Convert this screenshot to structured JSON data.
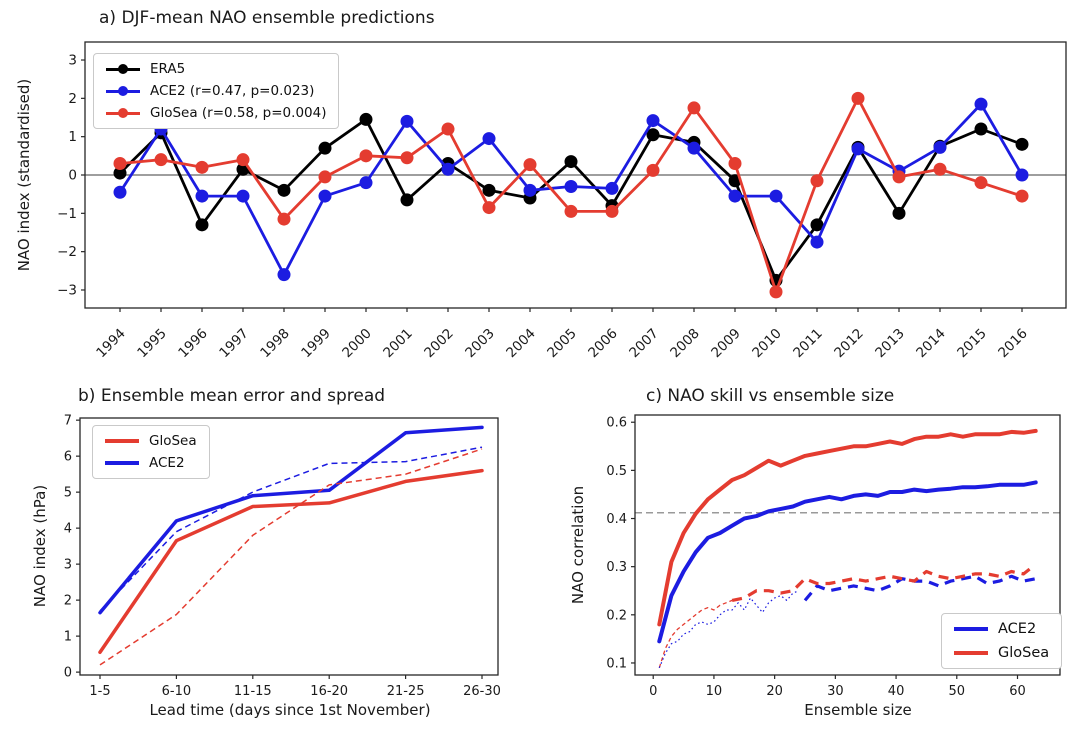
{
  "figure": {
    "background": "#ffffff"
  },
  "colors": {
    "era5": "#000000",
    "ace2": "#1c1ce1",
    "glosea": "#e43c30",
    "zero_line": "#7f7f7f",
    "ref_line": "#9a9a9a",
    "spine": "#262626"
  },
  "panels": {
    "a": {
      "title": "a) DJF-mean NAO ensemble predictions",
      "ylabel": "NAO index (standardised)",
      "legend": [
        {
          "label": "ERA5",
          "color": "#000000",
          "marker": true
        },
        {
          "label": "ACE2 (r=0.47, p=0.023)",
          "color": "#1c1ce1",
          "marker": true
        },
        {
          "label": "GloSea (r=0.58, p=0.004)",
          "color": "#e43c30",
          "marker": true
        }
      ]
    },
    "b": {
      "title": "b) Ensemble mean error and spread",
      "xlabel": "Lead time (days since 1st November)",
      "ylabel": "NAO index (hPa)",
      "legend": [
        {
          "label": "GloSea",
          "color": "#e43c30"
        },
        {
          "label": "ACE2",
          "color": "#1c1ce1"
        }
      ]
    },
    "c": {
      "title": "c) NAO skill vs ensemble size",
      "xlabel": "Ensemble size",
      "ylabel": "NAO correlation",
      "legend": [
        {
          "label": "ACE2",
          "color": "#1c1ce1"
        },
        {
          "label": "GloSea",
          "color": "#e43c30"
        }
      ]
    }
  },
  "chart_data": [
    {
      "id": "a",
      "type": "line",
      "title": "a) DJF-mean NAO ensemble predictions",
      "ylabel": "NAO index (standardised)",
      "markers": true,
      "zero_line": true,
      "ylim": [
        -3.5,
        3.5
      ],
      "xticklabels": [
        "1994",
        "1995",
        "1996",
        "1997",
        "1998",
        "1999",
        "2000",
        "2001",
        "2002",
        "2003",
        "2004",
        "2005",
        "2006",
        "2007",
        "2008",
        "2009",
        "2010",
        "2011",
        "2012",
        "2013",
        "2014",
        "2015",
        "2016"
      ],
      "yticks": [
        3,
        2,
        1,
        0,
        -1,
        -2,
        -3
      ],
      "yticklabels": [
        "3",
        "2",
        "1",
        "0",
        "−1",
        "−2",
        "−3"
      ],
      "series": [
        {
          "id": "era5",
          "name": "ERA5",
          "color": "#000000",
          "width": 2.8,
          "dash": "solid",
          "values": [
            0.05,
            1.1,
            -1.3,
            0.15,
            -0.4,
            0.7,
            1.45,
            -0.65,
            0.3,
            -0.4,
            -0.6,
            0.35,
            -0.8,
            1.05,
            0.85,
            -0.15,
            -2.75,
            -1.3,
            0.72,
            -1.0,
            0.75,
            1.2,
            0.8
          ]
        },
        {
          "id": "ace2",
          "name": "ACE2 (r=0.47, p=0.023)",
          "color": "#1c1ce1",
          "width": 2.8,
          "dash": "solid",
          "values": [
            -0.45,
            1.2,
            -0.55,
            -0.55,
            -2.6,
            -0.55,
            -0.2,
            1.4,
            0.15,
            0.95,
            -0.4,
            -0.3,
            -0.35,
            1.42,
            0.7,
            -0.55,
            -0.55,
            -1.75,
            0.68,
            0.1,
            0.72,
            1.85,
            0.0
          ]
        },
        {
          "id": "glosea",
          "name": "GloSea (r=0.58, p=0.004)",
          "color": "#e43c30",
          "width": 2.8,
          "dash": "solid",
          "values": [
            0.3,
            0.4,
            0.2,
            0.4,
            -1.15,
            -0.05,
            0.5,
            0.45,
            1.2,
            -0.85,
            0.27,
            -0.95,
            -0.95,
            0.12,
            1.75,
            0.3,
            -3.05,
            -0.15,
            2.0,
            -0.05,
            0.15,
            -0.2,
            -0.55
          ]
        }
      ]
    },
    {
      "id": "b",
      "type": "line",
      "title": "b) Ensemble mean error and spread",
      "xlabel": "Lead time (days since 1st November)",
      "ylabel": "NAO index (hPa)",
      "ylim": [
        0,
        7
      ],
      "xticklabels": [
        "1-5",
        "6-10",
        "11-15",
        "16-20",
        "21-25",
        "26-30"
      ],
      "yticks": [
        0,
        1,
        2,
        3,
        4,
        5,
        6,
        7
      ],
      "yticklabels": [
        "0",
        "1",
        "2",
        "3",
        "4",
        "5",
        "6",
        "7"
      ],
      "series": [
        {
          "id": "glosea-error",
          "name": "GloSea",
          "color": "#e43c30",
          "width": 3.5,
          "dash": "solid",
          "values": [
            0.55,
            3.65,
            4.6,
            4.7,
            5.3,
            5.6
          ]
        },
        {
          "id": "ace2-error",
          "name": "ACE2",
          "color": "#1c1ce1",
          "width": 3.5,
          "dash": "solid",
          "values": [
            1.65,
            4.2,
            4.9,
            5.05,
            6.65,
            6.8
          ]
        },
        {
          "id": "glosea-spread",
          "name": "GloSea spread",
          "color": "#e43c30",
          "width": 1.5,
          "dash": "dashed",
          "values": [
            0.2,
            1.6,
            3.8,
            5.2,
            5.5,
            6.2
          ]
        },
        {
          "id": "ace2-spread",
          "name": "ACE2 spread",
          "color": "#1c1ce1",
          "width": 1.5,
          "dash": "dashed",
          "values": [
            1.7,
            3.9,
            5.0,
            5.8,
            5.85,
            6.25
          ]
        }
      ]
    },
    {
      "id": "c",
      "type": "line",
      "title": "c) NAO skill vs ensemble size",
      "xlabel": "Ensemble size",
      "ylabel": "NAO correlation",
      "ylim": [
        0.07,
        0.62
      ],
      "xlim": [
        -3,
        67
      ],
      "xticks": [
        0,
        10,
        20,
        30,
        40,
        50,
        60
      ],
      "xticklabels": [
        "0",
        "10",
        "20",
        "30",
        "40",
        "50",
        "60"
      ],
      "yticks": [
        0.1,
        0.2,
        0.3,
        0.4,
        0.5,
        0.6
      ],
      "yticklabels": [
        "0.1",
        "0.2",
        "0.3",
        "0.4",
        "0.5",
        "0.6"
      ],
      "ref_line": {
        "value": 0.412,
        "color": "#9a9a9a",
        "dash": "dashed"
      },
      "series": [
        {
          "id": "glosea-spread-skill-small",
          "color": "#e43c30",
          "width": 1.3,
          "dash": "dashed",
          "x": [
            1,
            2,
            3,
            4,
            5,
            6,
            7,
            8,
            9,
            10,
            11,
            12,
            13
          ],
          "values": [
            0.09,
            0.13,
            0.155,
            0.17,
            0.18,
            0.19,
            0.2,
            0.21,
            0.215,
            0.21,
            0.22,
            0.225,
            0.23
          ]
        },
        {
          "id": "ace2-spread-skill-small",
          "color": "#1c1ce1",
          "width": 1.2,
          "dash": "dotted",
          "x": [
            1,
            2,
            3,
            4,
            5,
            6,
            7,
            8,
            9,
            10,
            11,
            12,
            13,
            14,
            15,
            16,
            17,
            18,
            19,
            20,
            21,
            22,
            23,
            24
          ],
          "values": [
            0.09,
            0.12,
            0.14,
            0.145,
            0.16,
            0.165,
            0.18,
            0.185,
            0.18,
            0.185,
            0.2,
            0.21,
            0.21,
            0.225,
            0.21,
            0.235,
            0.22,
            0.205,
            0.225,
            0.235,
            0.24,
            0.23,
            0.245,
            0.25
          ]
        },
        {
          "id": "ace2-spread-skill",
          "color": "#1c1ce1",
          "width": 3.2,
          "dash": "dashed",
          "x": [
            25,
            27,
            29,
            31,
            33,
            35,
            37,
            39,
            41,
            43,
            45,
            47,
            49,
            51,
            53,
            55,
            57,
            59,
            61,
            63
          ],
          "values": [
            0.23,
            0.26,
            0.25,
            0.255,
            0.26,
            0.255,
            0.25,
            0.26,
            0.275,
            0.27,
            0.27,
            0.26,
            0.27,
            0.275,
            0.28,
            0.265,
            0.27,
            0.28,
            0.27,
            0.275
          ]
        },
        {
          "id": "glosea-spread-skill",
          "color": "#e43c30",
          "width": 3.2,
          "dash": "dashed",
          "x": [
            13,
            15,
            17,
            19,
            21,
            23,
            25,
            27,
            29,
            31,
            33,
            35,
            37,
            39,
            41,
            43,
            45,
            47,
            49,
            51,
            53,
            55,
            57,
            59,
            61,
            62
          ],
          "values": [
            0.23,
            0.235,
            0.25,
            0.25,
            0.245,
            0.25,
            0.275,
            0.265,
            0.265,
            0.27,
            0.275,
            0.27,
            0.275,
            0.28,
            0.275,
            0.27,
            0.29,
            0.28,
            0.275,
            0.28,
            0.285,
            0.285,
            0.28,
            0.29,
            0.285,
            0.295
          ]
        },
        {
          "id": "ace2-skill",
          "name": "ACE2",
          "color": "#1c1ce1",
          "width": 4,
          "dash": "solid",
          "x": [
            1,
            3,
            5,
            7,
            9,
            11,
            13,
            15,
            17,
            19,
            21,
            23,
            25,
            27,
            29,
            31,
            33,
            35,
            37,
            39,
            41,
            43,
            45,
            47,
            49,
            51,
            53,
            55,
            57,
            59,
            61,
            63
          ],
          "values": [
            0.145,
            0.24,
            0.29,
            0.33,
            0.36,
            0.37,
            0.385,
            0.4,
            0.405,
            0.415,
            0.42,
            0.425,
            0.435,
            0.44,
            0.445,
            0.44,
            0.447,
            0.45,
            0.447,
            0.455,
            0.455,
            0.46,
            0.457,
            0.46,
            0.462,
            0.465,
            0.465,
            0.467,
            0.47,
            0.47,
            0.47,
            0.475
          ]
        },
        {
          "id": "glosea-skill",
          "name": "GloSea",
          "color": "#e43c30",
          "width": 4,
          "dash": "solid",
          "x": [
            1,
            3,
            5,
            7,
            9,
            11,
            13,
            15,
            17,
            19,
            21,
            23,
            25,
            27,
            29,
            31,
            33,
            35,
            37,
            39,
            41,
            43,
            45,
            47,
            49,
            51,
            53,
            55,
            57,
            59,
            61,
            63
          ],
          "values": [
            0.18,
            0.31,
            0.37,
            0.41,
            0.44,
            0.46,
            0.48,
            0.49,
            0.505,
            0.52,
            0.51,
            0.52,
            0.53,
            0.535,
            0.54,
            0.545,
            0.55,
            0.55,
            0.555,
            0.56,
            0.555,
            0.565,
            0.57,
            0.57,
            0.575,
            0.57,
            0.575,
            0.575,
            0.575,
            0.58,
            0.578,
            0.582
          ]
        }
      ]
    }
  ]
}
